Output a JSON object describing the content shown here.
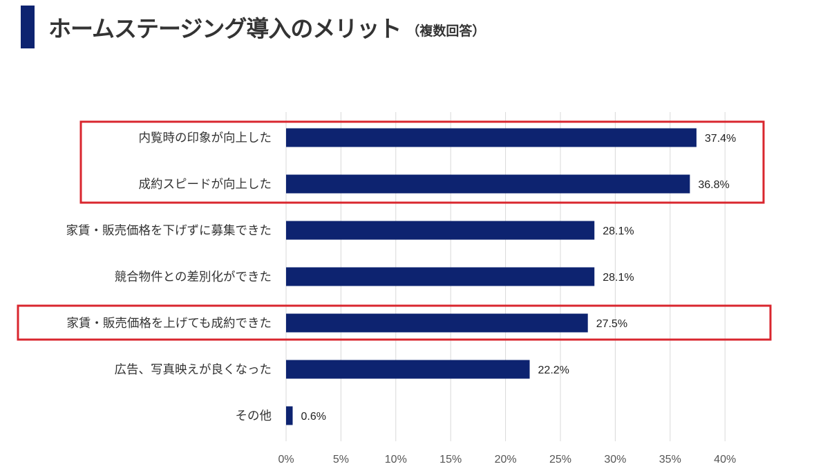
{
  "header": {
    "title": "ホームステージング導入のメリット",
    "subtitle": "（複数回答）",
    "accent_color": "#0d2370"
  },
  "chart_data": {
    "type": "bar",
    "orientation": "horizontal",
    "categories": [
      "内覧時の印象が向上した",
      "成約スピードが向上した",
      "家賃・販売価格を下げずに募集できた",
      "競合物件との差別化ができた",
      "家賃・販売価格を上げても成約できた",
      "広告、写真映えが良くなった",
      "その他"
    ],
    "values": [
      37.4,
      36.8,
      28.1,
      28.1,
      27.5,
      22.2,
      0.6
    ],
    "value_labels": [
      "37.4%",
      "36.8%",
      "28.1%",
      "28.1%",
      "27.5%",
      "22.2%",
      "0.6%"
    ],
    "xlim": [
      0,
      40
    ],
    "x_ticks": [
      0,
      5,
      10,
      15,
      20,
      25,
      30,
      35,
      40
    ],
    "x_tick_labels": [
      "0%",
      "5%",
      "10%",
      "15%",
      "20%",
      "25%",
      "30%",
      "35%",
      "40%"
    ],
    "grid": true,
    "bar_color": "#0d2370",
    "highlight_color": "#d9262e",
    "highlight_groups": [
      [
        0,
        1
      ],
      [
        4
      ]
    ]
  }
}
